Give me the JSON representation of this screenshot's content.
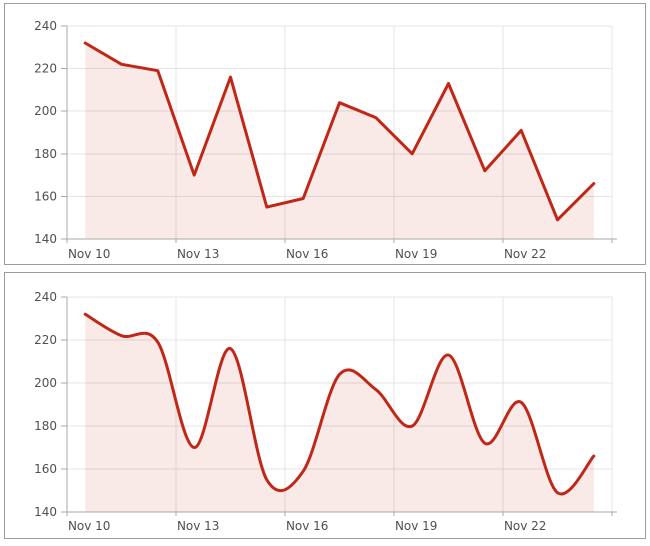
{
  "page": {
    "background": "#ffffff"
  },
  "chart_data": [
    {
      "panel": "top",
      "type": "line",
      "smooth": false,
      "title": "",
      "categories": [
        "Nov 10",
        "Nov 11",
        "Nov 12",
        "Nov 13",
        "Nov 14",
        "Nov 15",
        "Nov 16",
        "Nov 17",
        "Nov 18",
        "Nov 19",
        "Nov 20",
        "Nov 21",
        "Nov 22",
        "Nov 23",
        "Nov 24"
      ],
      "values": [
        232,
        222,
        219,
        170,
        216,
        155,
        159,
        204,
        197,
        180,
        213,
        172,
        191,
        149,
        166
      ],
      "x_tick_labels": [
        "Nov 10",
        "Nov 13",
        "Nov 16",
        "Nov 19",
        "Nov 22"
      ],
      "x_tick_indices": [
        0,
        3,
        6,
        9,
        12
      ],
      "x_grid_step_days": 3,
      "y_ticks": [
        140,
        160,
        180,
        200,
        220,
        240
      ],
      "ylim": [
        140,
        240
      ],
      "grid": true,
      "legend": false,
      "colors": {
        "line": "#c02717",
        "fill": "rgba(192,39,23,0.10)",
        "grid": "#e4e4e4",
        "axis": "#a8a8a8",
        "label": "#4f4f4f",
        "panel_border": "#9c9c9c",
        "background": "#ffffff"
      }
    },
    {
      "panel": "bottom",
      "type": "line",
      "smooth": true,
      "title": "",
      "categories": [
        "Nov 10",
        "Nov 11",
        "Nov 12",
        "Nov 13",
        "Nov 14",
        "Nov 15",
        "Nov 16",
        "Nov 17",
        "Nov 18",
        "Nov 19",
        "Nov 20",
        "Nov 21",
        "Nov 22",
        "Nov 23",
        "Nov 24"
      ],
      "values": [
        232,
        222,
        219,
        170,
        216,
        155,
        159,
        204,
        197,
        180,
        213,
        172,
        191,
        149,
        166
      ],
      "x_tick_labels": [
        "Nov 10",
        "Nov 13",
        "Nov 16",
        "Nov 19",
        "Nov 22"
      ],
      "x_tick_indices": [
        0,
        3,
        6,
        9,
        12
      ],
      "x_grid_step_days": 3,
      "y_ticks": [
        140,
        160,
        180,
        200,
        220,
        240
      ],
      "ylim": [
        140,
        240
      ],
      "grid": true,
      "legend": false,
      "colors": {
        "line": "#c02717",
        "fill": "rgba(192,39,23,0.10)",
        "grid": "#e4e4e4",
        "axis": "#a8a8a8",
        "label": "#4f4f4f",
        "panel_border": "#9c9c9c",
        "background": "#ffffff"
      }
    }
  ]
}
